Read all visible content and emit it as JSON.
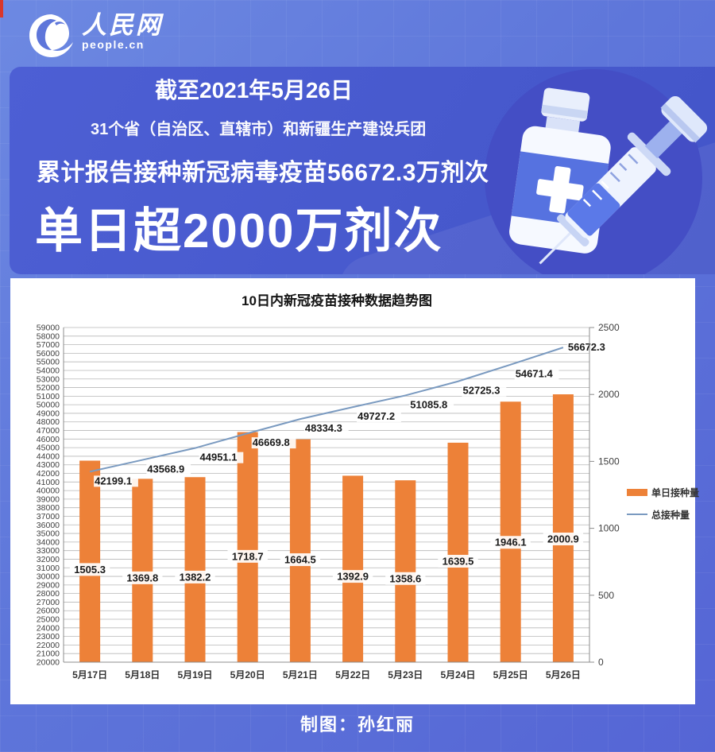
{
  "theme": {
    "background_blue": "#5e76da",
    "banner_blue": "#4759cd",
    "accent_red": "#d9372c",
    "text_white": "#ffffff"
  },
  "logo": {
    "name_cn": "人民网",
    "domain": "people.cn"
  },
  "banner": {
    "date_line": "截至2021年5月26日",
    "scope_line": "31个省（自治区、直辖市）和新疆生产建设兵团",
    "total_line": "累计报告接种新冠病毒疫苗56672.3万剂次",
    "headline": "单日超2000万剂次"
  },
  "chart_data": {
    "type": "bar+line dual-axis",
    "title": "10日内新冠疫苗接种数据趋势图",
    "categories": [
      "5月17日",
      "5月18日",
      "5月19日",
      "5月20日",
      "5月21日",
      "5月22日",
      "5月23日",
      "5月24日",
      "5月25日",
      "5月26日"
    ],
    "series": [
      {
        "name": "单日接种量",
        "type": "bar",
        "axis": "right",
        "color": "#ed8138",
        "values": [
          1505.3,
          1369.8,
          1382.2,
          1718.7,
          1664.5,
          1392.9,
          1358.6,
          1639.5,
          1946.1,
          2000.9
        ]
      },
      {
        "name": "总接种量",
        "type": "line",
        "axis": "left",
        "color": "#7a9ac0",
        "values": [
          42199.1,
          43568.9,
          44951.1,
          46669.8,
          48334.3,
          49727.2,
          51085.8,
          52725.3,
          54671.4,
          56672.3
        ]
      }
    ],
    "left_axis": {
      "min": 20000,
      "max": 59000,
      "step": 1000
    },
    "right_axis": {
      "min": 0,
      "max": 2500,
      "step": 500
    },
    "grid": true,
    "legend_position": "right",
    "data_labels": true
  },
  "footer": {
    "credit": "制图：孙红丽"
  }
}
